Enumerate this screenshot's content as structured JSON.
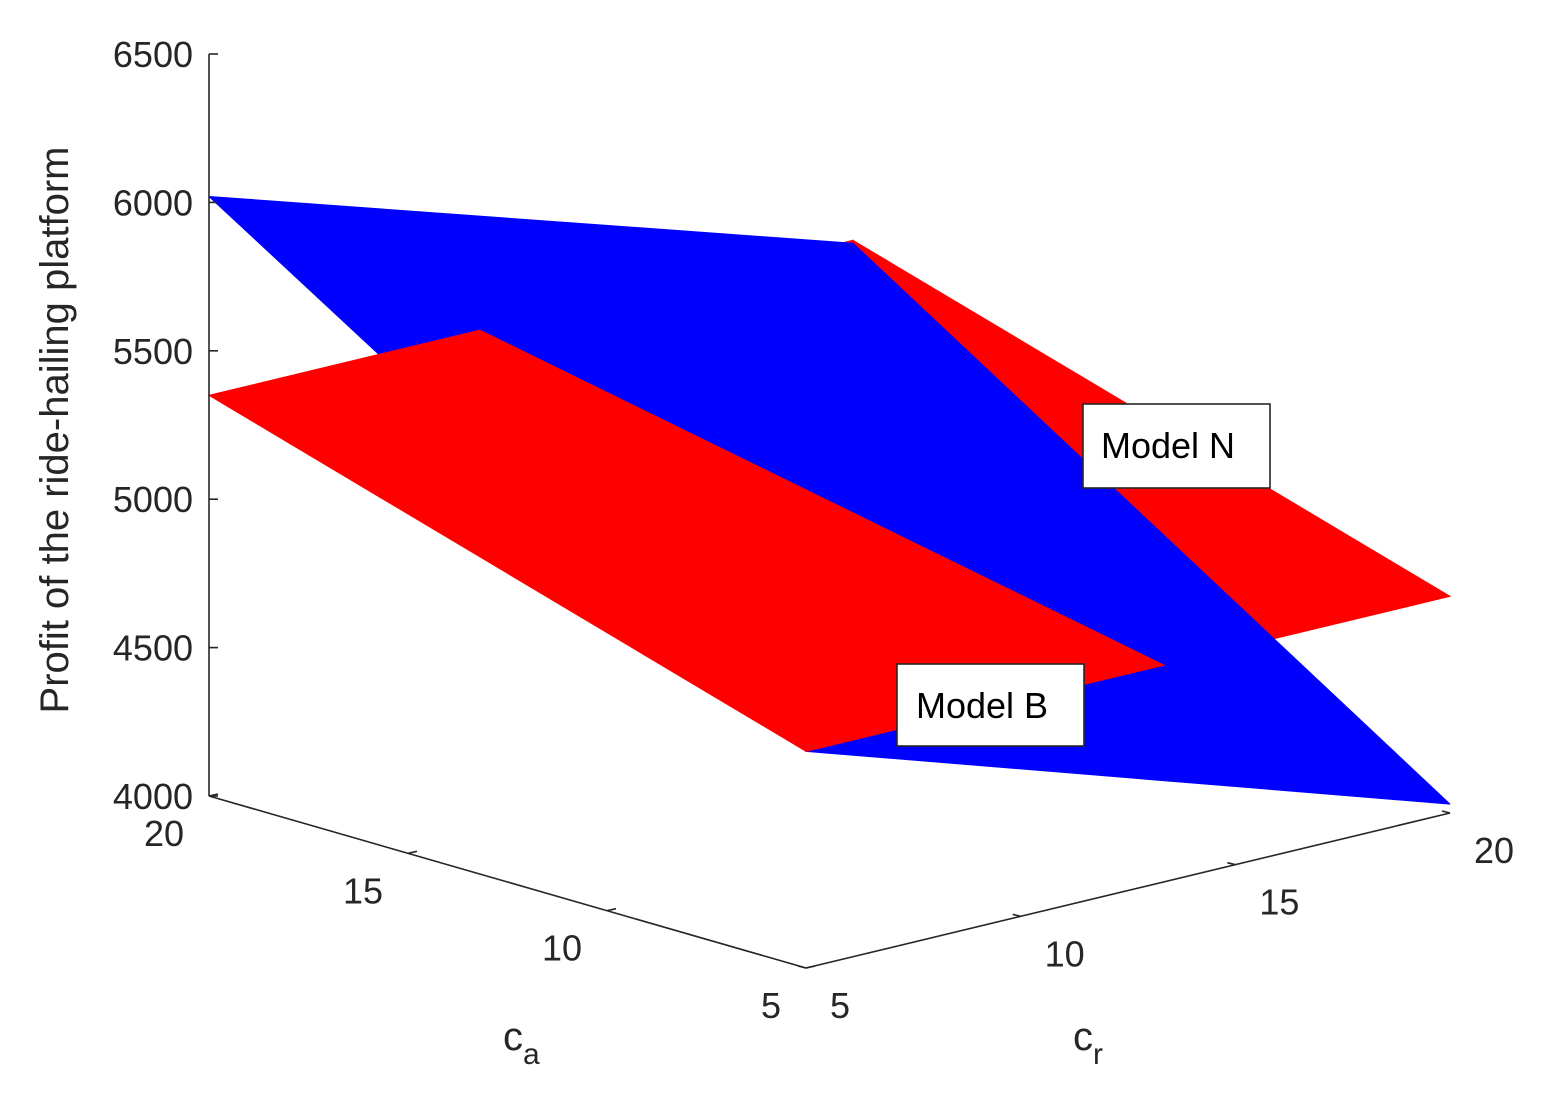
{
  "chart_data": {
    "type": "surface",
    "title": "",
    "xlabel": "c",
    "xlabel_sub": "r",
    "ylabel": "c",
    "ylabel_sub": "a",
    "zlabel": "Profit of the ride-hailing platform",
    "xlim": [
      5,
      20
    ],
    "ylim": [
      5,
      20
    ],
    "zlim": [
      4000,
      6500
    ],
    "x_ticks": [
      5,
      10,
      15,
      20
    ],
    "y_ticks": [
      5,
      10,
      15,
      20
    ],
    "z_ticks": [
      4000,
      4500,
      5000,
      5500,
      6000,
      6500
    ],
    "x_tick_labels": [
      "5",
      "10",
      "15",
      "20"
    ],
    "y_tick_labels": [
      "5",
      "10",
      "15",
      "20"
    ],
    "z_tick_labels": [
      "4000",
      "4500",
      "5000",
      "5500",
      "6000",
      "6500"
    ],
    "series": [
      {
        "name": "Model N",
        "color": "#ff0000",
        "corners": [
          {
            "c_r": 5,
            "c_a": 20,
            "profit": 5350
          },
          {
            "c_r": 5,
            "c_a": 5,
            "profit": 4730
          },
          {
            "c_r": 20,
            "c_a": 5,
            "profit": 4730
          },
          {
            "c_r": 20,
            "c_a": 20,
            "profit": 5350
          }
        ]
      },
      {
        "name": "Model B",
        "color": "#0000ff",
        "corners": [
          {
            "c_r": 5,
            "c_a": 20,
            "profit": 6020
          },
          {
            "c_r": 5,
            "c_a": 5,
            "profit": 4730
          },
          {
            "c_r": 20,
            "c_a": 5,
            "profit": 4030
          },
          {
            "c_r": 20,
            "c_a": 20,
            "profit": 5340
          }
        ]
      }
    ],
    "annotations": [
      {
        "text": "Model N",
        "target": "Model N"
      },
      {
        "text": "Model B",
        "target": "Model B"
      }
    ]
  }
}
